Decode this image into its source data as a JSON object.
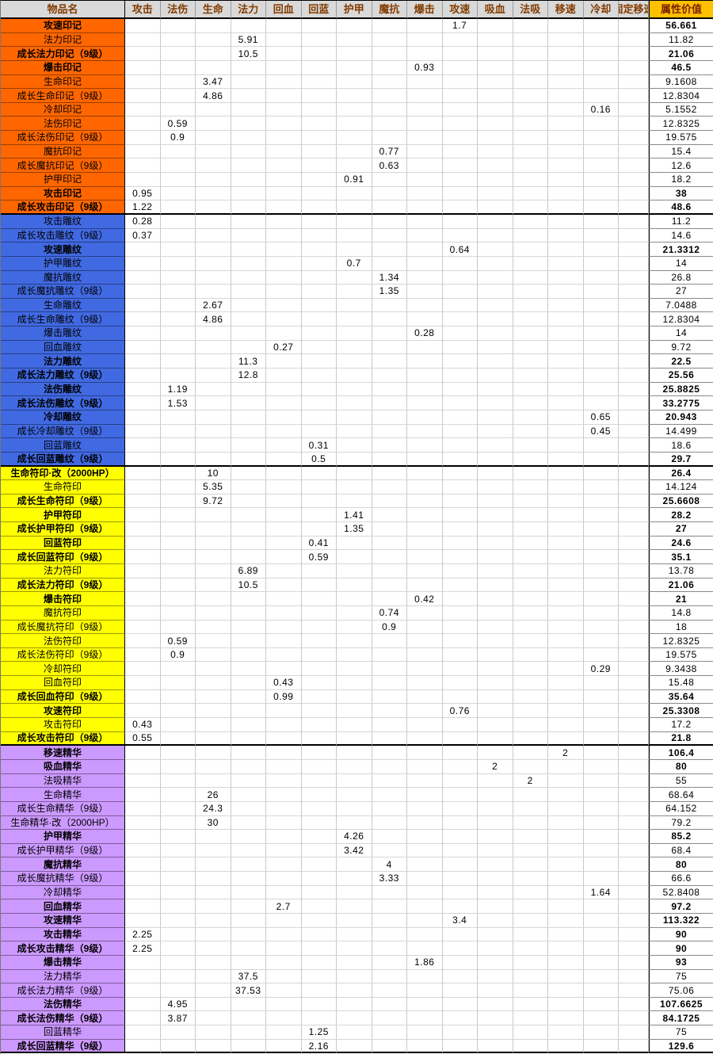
{
  "columns": [
    "物品名",
    "攻击",
    "法伤",
    "生命",
    "法力",
    "回血",
    "回蓝",
    "护甲",
    "魔抗",
    "爆击",
    "攻速",
    "吸血",
    "法吸",
    "移速",
    "冷却",
    "固定移速",
    "属性价值"
  ],
  "colors": {
    "header_bg": "#D9D9D9",
    "header_text": "#833C00",
    "value_header_bg": "#FFC000",
    "value_header_text": "#7F2100",
    "group_orange": "#FF6600",
    "group_blue": "#4169E1",
    "group_yellow": "#FFFF00",
    "group_purple": "#CC99FF",
    "grid_line": "#C9C9C9"
  },
  "groups": [
    {
      "id": "yinji",
      "color_key": "group_orange",
      "rows": [
        {
          "label": "攻速印记",
          "bold": true,
          "stats": {
            "攻速": "1.7"
          },
          "value": "56.661"
        },
        {
          "label": "法力印记",
          "bold": false,
          "stats": {
            "法力": "5.91"
          },
          "value": "11.82"
        },
        {
          "label": "成长法力印记（9级）",
          "bold": true,
          "stats": {
            "法力": "10.5"
          },
          "value": "21.06"
        },
        {
          "label": "爆击印记",
          "bold": true,
          "stats": {
            "爆击": "0.93"
          },
          "value": "46.5"
        },
        {
          "label": "生命印记",
          "bold": false,
          "stats": {
            "生命": "3.47"
          },
          "value": "9.1608"
        },
        {
          "label": "成长生命印记（9级）",
          "bold": false,
          "stats": {
            "生命": "4.86"
          },
          "value": "12.8304"
        },
        {
          "label": "冷却印记",
          "bold": false,
          "stats": {
            "冷却": "0.16"
          },
          "value": "5.1552"
        },
        {
          "label": "法伤印记",
          "bold": false,
          "stats": {
            "法伤": "0.59"
          },
          "value": "12.8325"
        },
        {
          "label": "成长法伤印记（9级）",
          "bold": false,
          "stats": {
            "法伤": "0.9"
          },
          "value": "19.575"
        },
        {
          "label": "魔抗印记",
          "bold": false,
          "stats": {
            "魔抗": "0.77"
          },
          "value": "15.4"
        },
        {
          "label": "成长魔抗印记（9级）",
          "bold": false,
          "stats": {
            "魔抗": "0.63"
          },
          "value": "12.6"
        },
        {
          "label": "护甲印记",
          "bold": false,
          "stats": {
            "护甲": "0.91"
          },
          "value": "18.2"
        },
        {
          "label": "攻击印记",
          "bold": true,
          "stats": {
            "攻击": "0.95"
          },
          "value": "38"
        },
        {
          "label": "成长攻击印记（9级）",
          "bold": true,
          "stats": {
            "攻击": "1.22"
          },
          "value": "48.6"
        }
      ]
    },
    {
      "id": "diaowen",
      "color_key": "group_blue",
      "rows": [
        {
          "label": "攻击雕纹",
          "bold": false,
          "stats": {
            "攻击": "0.28"
          },
          "value": "11.2"
        },
        {
          "label": "成长攻击雕纹（9级）",
          "bold": false,
          "stats": {
            "攻击": "0.37"
          },
          "value": "14.6"
        },
        {
          "label": "攻速雕纹",
          "bold": true,
          "stats": {
            "攻速": "0.64"
          },
          "value": "21.3312"
        },
        {
          "label": "护甲雕纹",
          "bold": false,
          "stats": {
            "护甲": "0.7"
          },
          "value": "14"
        },
        {
          "label": "魔抗雕纹",
          "bold": false,
          "stats": {
            "魔抗": "1.34"
          },
          "value": "26.8"
        },
        {
          "label": "成长魔抗雕纹（9级）",
          "bold": false,
          "stats": {
            "魔抗": "1.35"
          },
          "value": "27"
        },
        {
          "label": "生命雕纹",
          "bold": false,
          "stats": {
            "生命": "2.67"
          },
          "value": "7.0488"
        },
        {
          "label": "成长生命雕纹（9级）",
          "bold": false,
          "stats": {
            "生命": "4.86"
          },
          "value": "12.8304"
        },
        {
          "label": "爆击雕纹",
          "bold": false,
          "stats": {
            "爆击": "0.28"
          },
          "value": "14"
        },
        {
          "label": "回血雕纹",
          "bold": false,
          "stats": {
            "回血": "0.27"
          },
          "value": "9.72"
        },
        {
          "label": "法力雕纹",
          "bold": true,
          "stats": {
            "法力": "11.3"
          },
          "value": "22.5"
        },
        {
          "label": "成长法力雕纹（9级）",
          "bold": true,
          "stats": {
            "法力": "12.8"
          },
          "value": "25.56"
        },
        {
          "label": "法伤雕纹",
          "bold": true,
          "stats": {
            "法伤": "1.19"
          },
          "value": "25.8825"
        },
        {
          "label": "成长法伤雕纹（9级）",
          "bold": true,
          "stats": {
            "法伤": "1.53"
          },
          "value": "33.2775"
        },
        {
          "label": "冷却雕纹",
          "bold": true,
          "stats": {
            "冷却": "0.65"
          },
          "value": "20.943"
        },
        {
          "label": "成长冷却雕纹（9级）",
          "bold": false,
          "stats": {
            "冷却": "0.45"
          },
          "value": "14.499"
        },
        {
          "label": "回蓝雕纹",
          "bold": false,
          "stats": {
            "回蓝": "0.31"
          },
          "value": "18.6"
        },
        {
          "label": "成长回蓝雕纹（9级）",
          "bold": true,
          "stats": {
            "回蓝": "0.5"
          },
          "value": "29.7"
        }
      ]
    },
    {
      "id": "fuyin",
      "color_key": "group_yellow",
      "rows": [
        {
          "label": "生命符印·改（2000HP）",
          "bold": true,
          "stats": {
            "生命": "10"
          },
          "value": "26.4"
        },
        {
          "label": "生命符印",
          "bold": false,
          "stats": {
            "生命": "5.35"
          },
          "value": "14.124"
        },
        {
          "label": "成长生命符印（9级）",
          "bold": true,
          "stats": {
            "生命": "9.72"
          },
          "value": "25.6608"
        },
        {
          "label": "护甲符印",
          "bold": true,
          "stats": {
            "护甲": "1.41"
          },
          "value": "28.2"
        },
        {
          "label": "成长护甲符印（9级）",
          "bold": true,
          "stats": {
            "护甲": "1.35"
          },
          "value": "27"
        },
        {
          "label": "回蓝符印",
          "bold": true,
          "stats": {
            "回蓝": "0.41"
          },
          "value": "24.6"
        },
        {
          "label": "成长回蓝符印（9级）",
          "bold": true,
          "stats": {
            "回蓝": "0.59"
          },
          "value": "35.1"
        },
        {
          "label": "法力符印",
          "bold": false,
          "stats": {
            "法力": "6.89"
          },
          "value": "13.78"
        },
        {
          "label": "成长法力符印（9级）",
          "bold": true,
          "stats": {
            "法力": "10.5"
          },
          "value": "21.06"
        },
        {
          "label": "爆击符印",
          "bold": true,
          "stats": {
            "爆击": "0.42"
          },
          "value": "21"
        },
        {
          "label": "魔抗符印",
          "bold": false,
          "stats": {
            "魔抗": "0.74"
          },
          "value": "14.8"
        },
        {
          "label": "成长魔抗符印（9级）",
          "bold": false,
          "stats": {
            "魔抗": "0.9"
          },
          "value": "18"
        },
        {
          "label": "法伤符印",
          "bold": false,
          "stats": {
            "法伤": "0.59"
          },
          "value": "12.8325"
        },
        {
          "label": "成长法伤符印（9级）",
          "bold": false,
          "stats": {
            "法伤": "0.9"
          },
          "value": "19.575"
        },
        {
          "label": "冷却符印",
          "bold": false,
          "stats": {
            "冷却": "0.29"
          },
          "value": "9.3438"
        },
        {
          "label": "回血符印",
          "bold": false,
          "stats": {
            "回血": "0.43"
          },
          "value": "15.48"
        },
        {
          "label": "成长回血符印（9级）",
          "bold": true,
          "stats": {
            "回血": "0.99"
          },
          "value": "35.64"
        },
        {
          "label": "攻速符印",
          "bold": true,
          "stats": {
            "攻速": "0.76"
          },
          "value": "25.3308"
        },
        {
          "label": "攻击符印",
          "bold": false,
          "stats": {
            "攻击": "0.43"
          },
          "value": "17.2"
        },
        {
          "label": "成长攻击符印（9级）",
          "bold": true,
          "stats": {
            "攻击": "0.55"
          },
          "value": "21.8"
        }
      ]
    },
    {
      "id": "jinghua",
      "color_key": "group_purple",
      "rows": [
        {
          "label": "移速精华",
          "bold": true,
          "stats": {
            "移速": "2"
          },
          "value": "106.4"
        },
        {
          "label": "吸血精华",
          "bold": true,
          "stats": {
            "吸血": "2"
          },
          "value": "80"
        },
        {
          "label": "法吸精华",
          "bold": false,
          "stats": {
            "法吸": "2"
          },
          "value": "55"
        },
        {
          "label": "生命精华",
          "bold": false,
          "stats": {
            "生命": "26"
          },
          "value": "68.64"
        },
        {
          "label": "成长生命精华（9级）",
          "bold": false,
          "stats": {
            "生命": "24.3"
          },
          "value": "64.152"
        },
        {
          "label": "生命精华·改（2000HP）",
          "bold": false,
          "stats": {
            "生命": "30"
          },
          "value": "79.2"
        },
        {
          "label": "护甲精华",
          "bold": true,
          "stats": {
            "护甲": "4.26"
          },
          "value": "85.2"
        },
        {
          "label": "成长护甲精华（9级）",
          "bold": false,
          "stats": {
            "护甲": "3.42"
          },
          "value": "68.4"
        },
        {
          "label": "魔抗精华",
          "bold": true,
          "stats": {
            "魔抗": "4"
          },
          "value": "80"
        },
        {
          "label": "成长魔抗精华（9级）",
          "bold": false,
          "stats": {
            "魔抗": "3.33"
          },
          "value": "66.6"
        },
        {
          "label": "冷却精华",
          "bold": false,
          "stats": {
            "冷却": "1.64"
          },
          "value": "52.8408"
        },
        {
          "label": "回血精华",
          "bold": true,
          "stats": {
            "回血": "2.7"
          },
          "value": "97.2"
        },
        {
          "label": "攻速精华",
          "bold": true,
          "stats": {
            "攻速": "3.4"
          },
          "value": "113.322"
        },
        {
          "label": "攻击精华",
          "bold": true,
          "stats": {
            "攻击": "2.25"
          },
          "value": "90"
        },
        {
          "label": "成长攻击精华（9级）",
          "bold": true,
          "stats": {
            "攻击": "2.25"
          },
          "value": "90"
        },
        {
          "label": "爆击精华",
          "bold": true,
          "stats": {
            "爆击": "1.86"
          },
          "value": "93"
        },
        {
          "label": "法力精华",
          "bold": false,
          "stats": {
            "法力": "37.5"
          },
          "value": "75"
        },
        {
          "label": "成长法力精华（9级）",
          "bold": false,
          "stats": {
            "法力": "37.53"
          },
          "value": "75.06"
        },
        {
          "label": "法伤精华",
          "bold": true,
          "stats": {
            "法伤": "4.95"
          },
          "value": "107.6625"
        },
        {
          "label": "成长法伤精华（9级）",
          "bold": true,
          "stats": {
            "法伤": "3.87"
          },
          "value": "84.1725"
        },
        {
          "label": "回蓝精华",
          "bold": false,
          "stats": {
            "回蓝": "1.25"
          },
          "value": "75"
        },
        {
          "label": "成长回蓝精华（9级）",
          "bold": true,
          "stats": {
            "回蓝": "2.16"
          },
          "value": "129.6"
        }
      ]
    }
  ]
}
